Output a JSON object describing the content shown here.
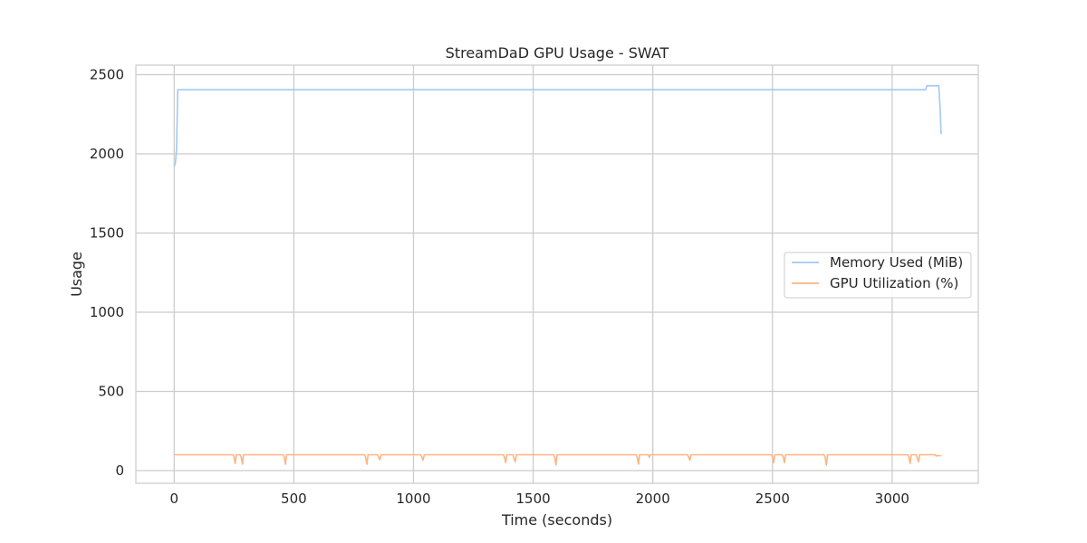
{
  "chart_data": {
    "type": "line",
    "title": "StreamDaD GPU Usage - SWAT",
    "xlabel": "Time (seconds)",
    "ylabel": "Usage",
    "xlim": [
      -160,
      3360
    ],
    "ylim": [
      -80,
      2560
    ],
    "xticks": [
      0,
      500,
      1000,
      1500,
      2000,
      2500,
      3000
    ],
    "yticks": [
      0,
      500,
      1000,
      1500,
      2000,
      2500
    ],
    "grid": true,
    "legend_position": "center-right",
    "series": [
      {
        "name": "Memory Used (MiB)",
        "color": "#a1c9f4",
        "x": [
          0,
          5,
          10,
          15,
          20,
          3140,
          3145,
          3150,
          3195,
          3200,
          3205
        ],
        "y": [
          1920,
          1940,
          2030,
          2405,
          2405,
          2405,
          2430,
          2430,
          2430,
          2300,
          2125
        ]
      },
      {
        "name": "GPU Utilization (%)",
        "color": "#ffb482",
        "x": [
          0,
          245,
          250,
          255,
          260,
          275,
          280,
          285,
          290,
          455,
          460,
          465,
          470,
          795,
          800,
          805,
          810,
          850,
          855,
          860,
          865,
          1030,
          1035,
          1040,
          1045,
          1375,
          1380,
          1385,
          1390,
          1415,
          1420,
          1425,
          1430,
          1585,
          1590,
          1595,
          1600,
          1930,
          1935,
          1940,
          1945,
          1980,
          1985,
          1990,
          2145,
          2150,
          2155,
          2160,
          2495,
          2500,
          2505,
          2510,
          2540,
          2545,
          2550,
          2555,
          2715,
          2720,
          2725,
          2730,
          3065,
          3070,
          3075,
          3080,
          3100,
          3105,
          3110,
          3115,
          3180,
          3185,
          3195,
          3205
        ],
        "y": [
          100,
          100,
          90,
          45,
          100,
          100,
          85,
          40,
          100,
          100,
          85,
          40,
          100,
          100,
          85,
          40,
          100,
          100,
          80,
          70,
          100,
          100,
          85,
          65,
          100,
          100,
          85,
          50,
          100,
          100,
          80,
          55,
          100,
          100,
          85,
          35,
          100,
          100,
          85,
          40,
          100,
          100,
          85,
          100,
          100,
          85,
          65,
          100,
          100,
          85,
          50,
          100,
          100,
          85,
          50,
          100,
          100,
          85,
          35,
          100,
          100,
          85,
          45,
          100,
          100,
          80,
          55,
          100,
          100,
          92,
          95,
          92
        ]
      }
    ]
  }
}
